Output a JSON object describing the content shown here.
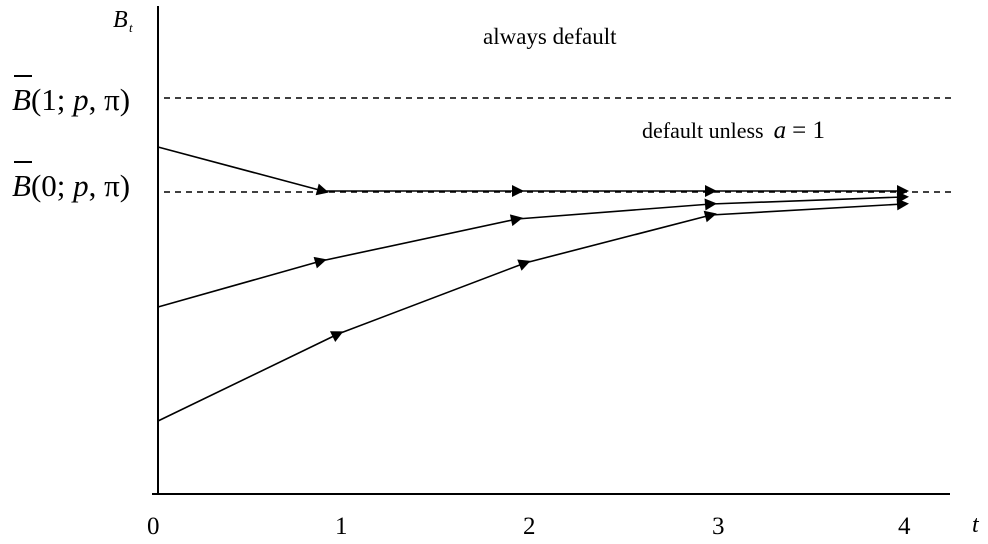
{
  "axes": {
    "y_label": "B",
    "y_label_sub": "t",
    "x_label": "t",
    "x_ticks": [
      "0",
      "1",
      "2",
      "3",
      "4"
    ]
  },
  "regions": {
    "upper_text": "always default",
    "middle_text_prefix": "default unless",
    "middle_text_var": "a",
    "middle_text_eq": "= 1"
  },
  "thresholds": [
    {
      "symbol": "B",
      "args_pre": "(1; ",
      "arg_p": "p",
      "args_post": ", π)"
    },
    {
      "symbol": "B",
      "args_pre": "(0; ",
      "arg_p": "p",
      "args_post": ", π)"
    }
  ]
}
